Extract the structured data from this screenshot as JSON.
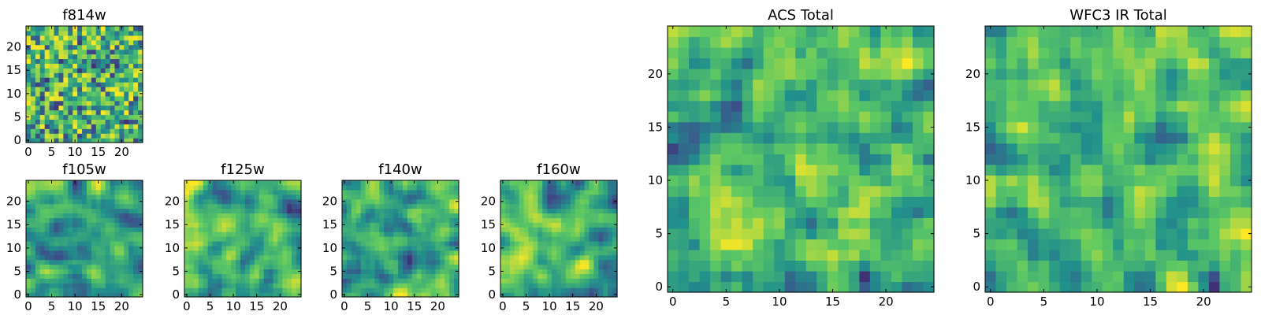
{
  "chart_data": [
    {
      "type": "heatmap",
      "title": "f814w",
      "grid": 25,
      "xticks": [
        "0",
        "5",
        "10",
        "15",
        "20"
      ],
      "yticks": [
        "0",
        "5",
        "10",
        "15",
        "20"
      ],
      "xlim": [
        -0.5,
        24.5
      ],
      "ylim": [
        -0.5,
        24.5
      ],
      "seed": 11,
      "smooth": 0,
      "colormap": "viridis"
    },
    {
      "type": "heatmap",
      "title": "f105w",
      "grid": 25,
      "xticks": [
        "0",
        "5",
        "10",
        "15",
        "20"
      ],
      "yticks": [
        "0",
        "5",
        "10",
        "15",
        "20"
      ],
      "xlim": [
        -0.5,
        24.5
      ],
      "ylim": [
        -0.5,
        24.5
      ],
      "seed": 23,
      "smooth": 2,
      "colormap": "viridis"
    },
    {
      "type": "heatmap",
      "title": "f125w",
      "grid": 25,
      "xticks": [
        "0",
        "5",
        "10",
        "15",
        "20"
      ],
      "yticks": [
        "0",
        "5",
        "10",
        "15",
        "20"
      ],
      "xlim": [
        -0.5,
        24.5
      ],
      "ylim": [
        -0.5,
        24.5
      ],
      "seed": 37,
      "smooth": 2,
      "colormap": "viridis"
    },
    {
      "type": "heatmap",
      "title": "f140w",
      "grid": 25,
      "xticks": [
        "0",
        "5",
        "10",
        "15",
        "20"
      ],
      "yticks": [
        "0",
        "5",
        "10",
        "15",
        "20"
      ],
      "xlim": [
        -0.5,
        24.5
      ],
      "ylim": [
        -0.5,
        24.5
      ],
      "seed": 41,
      "smooth": 2,
      "colormap": "viridis"
    },
    {
      "type": "heatmap",
      "title": "f160w",
      "grid": 25,
      "xticks": [
        "0",
        "5",
        "10",
        "15",
        "20"
      ],
      "yticks": [
        "0",
        "5",
        "10",
        "15",
        "20"
      ],
      "xlim": [
        -0.5,
        24.5
      ],
      "ylim": [
        -0.5,
        24.5
      ],
      "seed": 53,
      "smooth": 2,
      "colormap": "viridis"
    },
    {
      "type": "heatmap",
      "title": "ACS Total",
      "grid": 25,
      "xticks": [
        "0",
        "5",
        "10",
        "15",
        "20"
      ],
      "yticks": [
        "0",
        "5",
        "10",
        "15",
        "20"
      ],
      "xlim": [
        -0.5,
        24.5
      ],
      "ylim": [
        -0.5,
        24.5
      ],
      "seed": 67,
      "smooth": 1,
      "colormap": "viridis"
    },
    {
      "type": "heatmap",
      "title": "WFC3 IR Total",
      "grid": 25,
      "xticks": [
        "0",
        "5",
        "10",
        "15",
        "20"
      ],
      "yticks": [
        "0",
        "5",
        "10",
        "15",
        "20"
      ],
      "xlim": [
        -0.5,
        24.5
      ],
      "ylim": [
        -0.5,
        24.5
      ],
      "seed": 79,
      "smooth": 1,
      "colormap": "viridis"
    }
  ],
  "colors": {
    "viridis": [
      "#440154",
      "#3b528b",
      "#21918c",
      "#5ec962",
      "#fde725"
    ]
  }
}
